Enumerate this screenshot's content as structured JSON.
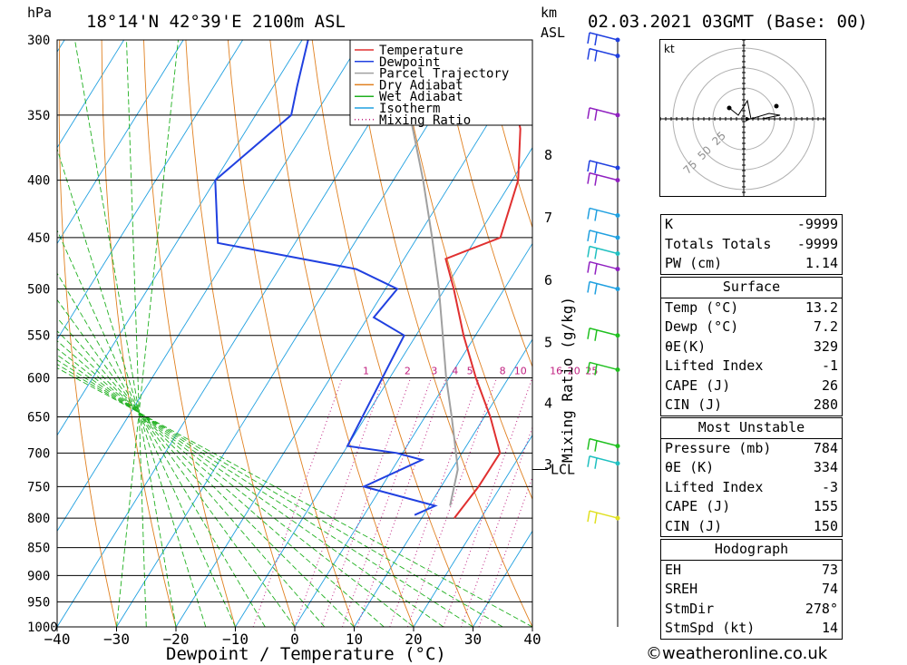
{
  "header": {
    "pressure_unit": "hPa",
    "location": "18°14'N  42°39'E  2100m  ASL",
    "km_unit": "km",
    "asl": "ASL",
    "datetime": "02.03.2021  03GMT  (Base: 00)"
  },
  "legend": {
    "items": [
      {
        "label": "Temperature",
        "color": "#e03030",
        "style": "solid"
      },
      {
        "label": "Dewpoint",
        "color": "#2040e0",
        "style": "solid"
      },
      {
        "label": "Parcel Trajectory",
        "color": "#a0a0a0",
        "style": "solid"
      },
      {
        "label": "Dry Adiabat",
        "color": "#e08020",
        "style": "solid"
      },
      {
        "label": "Wet Adiabat",
        "color": "#20b020",
        "style": "solid"
      },
      {
        "label": "Isotherm",
        "color": "#20a0e0",
        "style": "solid"
      },
      {
        "label": "Mixing Ratio",
        "color": "#c02080",
        "style": "dotted"
      }
    ]
  },
  "chart_data": {
    "type": "line",
    "title": "18°14'N  42°39'E  2100m  ASL",
    "xlabel": "Dewpoint / Temperature (°C)",
    "ylabel": "hPa",
    "xlim": [
      -40,
      40
    ],
    "ylim": [
      1000,
      300
    ],
    "skew_per_decade": 36,
    "pressure_ticks": [
      300,
      350,
      400,
      450,
      500,
      550,
      600,
      650,
      700,
      750,
      800,
      850,
      900,
      950,
      1000
    ],
    "temp_ticks": [
      -40,
      -30,
      -20,
      -10,
      0,
      10,
      20,
      30,
      40
    ],
    "temp_tick_labels": [
      "−40",
      "−30",
      "−20",
      "−10",
      "0",
      "10",
      "20",
      "30",
      "40"
    ],
    "km_ticks": [
      {
        "label": "8",
        "p": 380
      },
      {
        "label": "7",
        "p": 432
      },
      {
        "label": "6",
        "p": 491
      },
      {
        "label": "5",
        "p": 558
      },
      {
        "label": "4",
        "p": 632
      },
      {
        "label": "3",
        "p": 717
      }
    ],
    "lcl": {
      "label": "LCL",
      "p": 724
    },
    "mixing_ratio_axis_label": "Mixing Ratio (g/kg)",
    "mixing_ratio_lines": [
      {
        "label": "1",
        "t600": -14
      },
      {
        "label": "2",
        "t600": -7
      },
      {
        "label": "3",
        "t600": -2.5
      },
      {
        "label": "4",
        "t600": 1
      },
      {
        "label": "5",
        "t600": 3.5
      },
      {
        "label": "8",
        "t600": 9
      },
      {
        "label": "10",
        "t600": 12
      },
      {
        "label": "16",
        "t600": 18
      },
      {
        "label": "20",
        "t600": 21
      },
      {
        "label": "25",
        "t600": 24
      }
    ],
    "series": [
      {
        "name": "Temperature",
        "points": [
          [
            800,
            15.5
          ],
          [
            750,
            16.3
          ],
          [
            700,
            16.4
          ],
          [
            650,
            11
          ],
          [
            600,
            4.5
          ],
          [
            550,
            -2
          ],
          [
            500,
            -8.5
          ],
          [
            470,
            -13
          ],
          [
            450,
            -6
          ],
          [
            400,
            -9
          ],
          [
            360,
            -14
          ],
          [
            320,
            -22
          ],
          [
            300,
            -26
          ]
        ]
      },
      {
        "name": "Dewpoint",
        "points": [
          [
            795,
            8.5
          ],
          [
            780,
            11
          ],
          [
            750,
            -3
          ],
          [
            710,
            4
          ],
          [
            700,
            -1
          ],
          [
            690,
            -10
          ],
          [
            550,
            -12
          ],
          [
            530,
            -19
          ],
          [
            500,
            -18
          ],
          [
            480,
            -27
          ],
          [
            455,
            -53
          ],
          [
            400,
            -60
          ],
          [
            350,
            -54
          ],
          [
            330,
            -56
          ],
          [
            300,
            -59
          ]
        ]
      },
      {
        "name": "Parcel Trajectory",
        "points": [
          [
            780,
            13.5
          ],
          [
            724,
            11
          ],
          [
            700,
            9
          ],
          [
            650,
            4.5
          ],
          [
            600,
            -0.5
          ],
          [
            550,
            -5.5
          ],
          [
            500,
            -11
          ],
          [
            450,
            -17.5
          ],
          [
            400,
            -25
          ],
          [
            350,
            -34
          ],
          [
            310,
            -43
          ]
        ]
      }
    ],
    "wind_barbs": [
      {
        "p": 300,
        "color": "#2040e0"
      },
      {
        "p": 310,
        "color": "#2040e0"
      },
      {
        "p": 350,
        "color": "#9020c0"
      },
      {
        "p": 390,
        "color": "#2040e0"
      },
      {
        "p": 400,
        "color": "#9020c0"
      },
      {
        "p": 430,
        "color": "#20a0e0"
      },
      {
        "p": 450,
        "color": "#20a0e0"
      },
      {
        "p": 465,
        "color": "#20c0c0"
      },
      {
        "p": 480,
        "color": "#9020c0"
      },
      {
        "p": 500,
        "color": "#20a0e0"
      },
      {
        "p": 550,
        "color": "#20c020"
      },
      {
        "p": 590,
        "color": "#20c020"
      },
      {
        "p": 690,
        "color": "#20c020"
      },
      {
        "p": 715,
        "color": "#20c0c0"
      },
      {
        "p": 800,
        "color": "#e0e020"
      }
    ]
  },
  "hodograph": {
    "unit": "kt",
    "ring_labels": [
      "25",
      "50",
      "75"
    ]
  },
  "indices": {
    "top": [
      {
        "label": "K",
        "value": "-9999"
      },
      {
        "label": "Totals Totals",
        "value": "-9999"
      },
      {
        "label": "PW (cm)",
        "value": "1.14"
      }
    ],
    "surface": {
      "title": "Surface",
      "rows": [
        {
          "label": "Temp (°C)",
          "value": "13.2"
        },
        {
          "label": "Dewp (°C)",
          "value": "7.2"
        },
        {
          "label": "θE(K)",
          "value": "329"
        },
        {
          "label": "Lifted Index",
          "value": "-1"
        },
        {
          "label": "CAPE (J)",
          "value": "26"
        },
        {
          "label": "CIN (J)",
          "value": "280"
        }
      ]
    },
    "most_unstable": {
      "title": "Most Unstable",
      "rows": [
        {
          "label": "Pressure (mb)",
          "value": "784"
        },
        {
          "label": "θE (K)",
          "value": "334"
        },
        {
          "label": "Lifted Index",
          "value": "-3"
        },
        {
          "label": "CAPE (J)",
          "value": "155"
        },
        {
          "label": "CIN (J)",
          "value": "150"
        }
      ]
    },
    "hodograph": {
      "title": "Hodograph",
      "rows": [
        {
          "label": "EH",
          "value": "73"
        },
        {
          "label": "SREH",
          "value": "74"
        },
        {
          "label": "StmDir",
          "value": "278°"
        },
        {
          "label": "StmSpd (kt)",
          "value": "14"
        }
      ]
    }
  },
  "copyright": "©weatheronline.co.uk"
}
